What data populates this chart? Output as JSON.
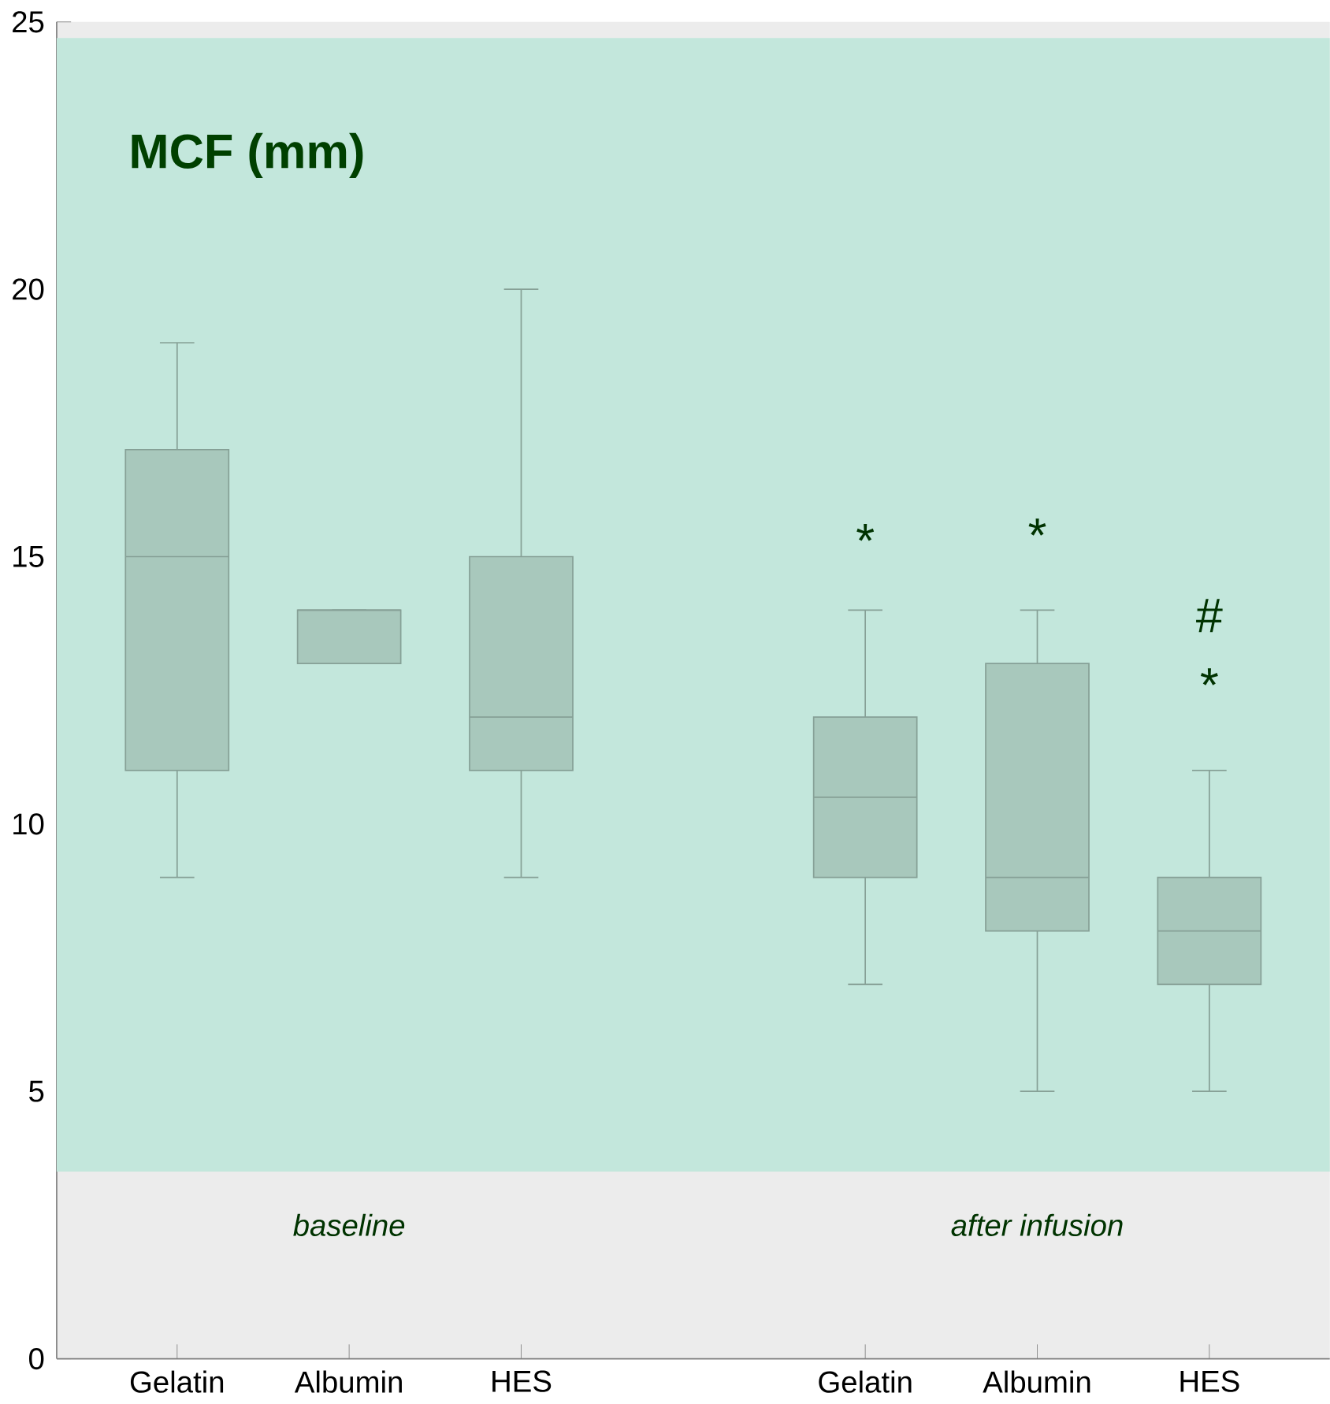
{
  "chart_data": {
    "type": "box",
    "title": "MCF (mm)",
    "categories": [
      "Gelatin",
      "Albumin",
      "HES",
      null,
      "Gelatin",
      "Albumin",
      "HES"
    ],
    "boxes": [
      {
        "low": 9,
        "q1": 11,
        "median": 15,
        "q3": 17,
        "high": 19
      },
      {
        "low": 13,
        "q1": 13,
        "median": 14,
        "q3": 14,
        "high": 14
      },
      {
        "low": 9,
        "q1": 11,
        "median": 12,
        "q3": 15,
        "high": 20
      },
      null,
      {
        "low": 7,
        "q1": 9,
        "median": 10.5,
        "q3": 12,
        "high": 14
      },
      {
        "low": 5,
        "q1": 8,
        "median": 9,
        "q3": 13,
        "high": 14
      },
      {
        "low": 5,
        "q1": 7,
        "median": 8,
        "q3": 9,
        "high": 11
      }
    ],
    "color": "#a8c8bc",
    "ylim": [
      0,
      25
    ],
    "yticks": [
      0,
      5,
      10,
      15,
      20,
      25
    ],
    "grid": false,
    "bands": [
      {
        "axis": "y",
        "from": 3.5,
        "to": 24.7,
        "color": "#c3e7dc"
      }
    ],
    "annotations": [
      "baseline",
      "after infusion",
      "*",
      "*",
      "#",
      "*"
    ]
  }
}
